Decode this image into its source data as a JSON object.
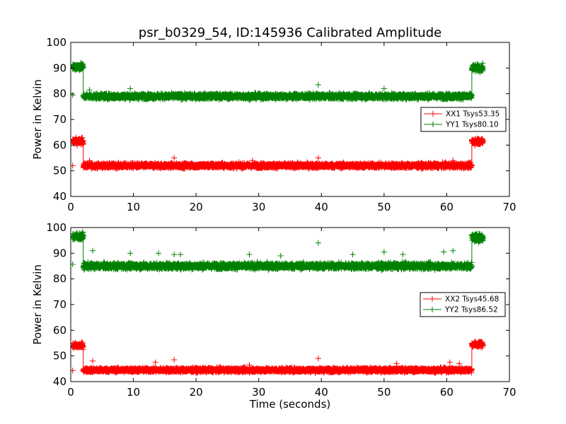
{
  "chart_data": [
    {
      "type": "scatter",
      "title": "psr_b0329_54, ID:145936 Calibrated Amplitude",
      "xlabel": "",
      "ylabel": "Power in Kelvin",
      "xlim": [
        0,
        70
      ],
      "ylim": [
        40,
        100
      ],
      "xticks": [
        0,
        10,
        20,
        30,
        40,
        50,
        60,
        70
      ],
      "yticks": [
        40,
        50,
        60,
        70,
        80,
        90,
        100
      ],
      "legend_position": "center-right",
      "series": [
        {
          "name": "XX1 Tsys53.35",
          "color": "#ff0000",
          "marker": "+",
          "segments": [
            {
              "x_start": 0.3,
              "x_end": 2.0,
              "level": 61.5,
              "noise": 1.2
            },
            {
              "x_start": 2.0,
              "x_end": 64.0,
              "level": 52.0,
              "noise": 0.9
            },
            {
              "x_start": 64.0,
              "x_end": 65.8,
              "level": 61.5,
              "noise": 1.2
            }
          ],
          "outliers": [
            [
              0.3,
              52
            ],
            [
              3,
              54
            ],
            [
              16.5,
              55
            ],
            [
              29,
              54
            ],
            [
              39.5,
              55
            ],
            [
              61,
              54
            ]
          ]
        },
        {
          "name": "YY1 Tsys80.10",
          "color": "#008000",
          "marker": "+",
          "segments": [
            {
              "x_start": 0.3,
              "x_end": 2.0,
              "level": 90.5,
              "noise": 1.3
            },
            {
              "x_start": 2.0,
              "x_end": 64.0,
              "level": 79.0,
              "noise": 1.0
            },
            {
              "x_start": 64.0,
              "x_end": 65.8,
              "level": 90.0,
              "noise": 1.3
            }
          ],
          "outliers": [
            [
              0.3,
              79.5
            ],
            [
              9.5,
              82
            ],
            [
              39.5,
              83.5
            ],
            [
              50,
              82
            ],
            [
              3,
              81.5
            ]
          ]
        }
      ]
    },
    {
      "type": "scatter",
      "title": "",
      "xlabel": "Time (seconds)",
      "ylabel": "Power in Kelvin",
      "xlim": [
        0,
        70
      ],
      "ylim": [
        40,
        100
      ],
      "xticks": [
        0,
        10,
        20,
        30,
        40,
        50,
        60,
        70
      ],
      "yticks": [
        40,
        50,
        60,
        70,
        80,
        90,
        100
      ],
      "legend_position": "center-right",
      "series": [
        {
          "name": "XX2 Tsys45.68",
          "color": "#ff0000",
          "marker": "+",
          "segments": [
            {
              "x_start": 0.3,
              "x_end": 2.0,
              "level": 54.0,
              "noise": 1.0
            },
            {
              "x_start": 2.0,
              "x_end": 64.0,
              "level": 44.5,
              "noise": 0.8
            },
            {
              "x_start": 64.0,
              "x_end": 65.8,
              "level": 54.5,
              "noise": 1.0
            }
          ],
          "outliers": [
            [
              0.3,
              44.3
            ],
            [
              3.5,
              48
            ],
            [
              13.5,
              47.5
            ],
            [
              16.5,
              48.5
            ],
            [
              28.5,
              46.5
            ],
            [
              39.5,
              49
            ],
            [
              52,
              47
            ],
            [
              60.5,
              47.5
            ],
            [
              62,
              47
            ]
          ]
        },
        {
          "name": "YY2 Tsys86.52",
          "color": "#008000",
          "marker": "+",
          "segments": [
            {
              "x_start": 0.3,
              "x_end": 2.0,
              "level": 96.5,
              "noise": 1.4
            },
            {
              "x_start": 2.0,
              "x_end": 64.0,
              "level": 85.0,
              "noise": 1.1
            },
            {
              "x_start": 64.0,
              "x_end": 65.8,
              "level": 96.0,
              "noise": 1.4
            }
          ],
          "outliers": [
            [
              0.3,
              85.7
            ],
            [
              3.5,
              91
            ],
            [
              9.5,
              90
            ],
            [
              14,
              90
            ],
            [
              16.5,
              89.5
            ],
            [
              17.5,
              89.5
            ],
            [
              28.5,
              89.5
            ],
            [
              33.5,
              89
            ],
            [
              39.5,
              94
            ],
            [
              45,
              89.5
            ],
            [
              50,
              90.5
            ],
            [
              53,
              89.5
            ],
            [
              59.5,
              90.5
            ],
            [
              61,
              91
            ]
          ]
        }
      ]
    }
  ]
}
